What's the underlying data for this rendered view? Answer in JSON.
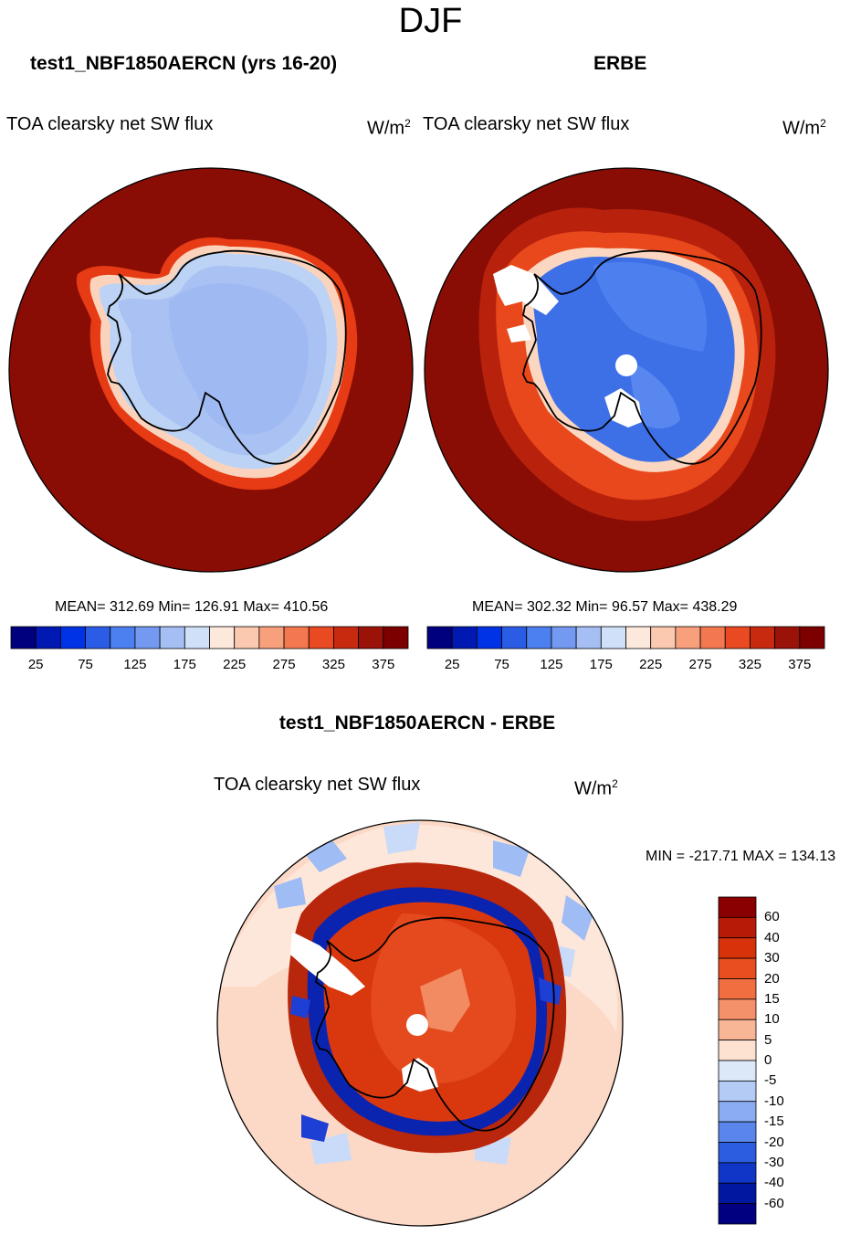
{
  "figure": {
    "season": "DJF",
    "panels": [
      {
        "title": "test1_NBF1850AERCN (yrs 16-20)",
        "variable": "TOA clearsky net SW flux",
        "units": "W/m",
        "units_sup": "2",
        "stats": "MEAN= 312.69  Min= 126.91  Max= 410.56"
      },
      {
        "title": "ERBE",
        "variable": "TOA clearsky net SW flux",
        "units": "W/m",
        "units_sup": "2",
        "stats": "MEAN= 302.32  Min=  96.57  Max= 438.29"
      },
      {
        "title": "test1_NBF1850AERCN - ERBE",
        "variable": "TOA clearsky net SW flux",
        "units": "W/m",
        "units_sup": "2",
        "minmax": "MIN = -217.71 MAX = 134.13"
      }
    ]
  },
  "chart_data": [
    {
      "type": "heatmap",
      "projection": "south-polar-stereographic",
      "title": "test1_NBF1850AERCN (yrs 16-20)",
      "variable": "TOA clearsky net SW flux",
      "units": "W/m2",
      "mean": 312.69,
      "min": 126.91,
      "max": 410.56,
      "colorbar_ticks": [
        "25",
        "75",
        "125",
        "175",
        "225",
        "275",
        "325",
        "375"
      ],
      "colorbar_levels": [
        25,
        50,
        75,
        100,
        125,
        150,
        175,
        200,
        225,
        250,
        275,
        300,
        325,
        350,
        375
      ],
      "colorbar_colors": [
        "#00007f",
        "#0019b3",
        "#0033e6",
        "#2a5ce6",
        "#4c7ff0",
        "#7399f0",
        "#a5bff5",
        "#cfe0f8",
        "#fde8dc",
        "#fbc8b0",
        "#f8a07c",
        "#f4784f",
        "#ea4a22",
        "#c82a10",
        "#9a1208",
        "#7d0000"
      ],
      "legend_position": "bottom"
    },
    {
      "type": "heatmap",
      "projection": "south-polar-stereographic",
      "title": "ERBE",
      "variable": "TOA clearsky net SW flux",
      "units": "W/m2",
      "mean": 302.32,
      "min": 96.57,
      "max": 438.29,
      "colorbar_ticks": [
        "25",
        "75",
        "125",
        "175",
        "225",
        "275",
        "325",
        "375"
      ],
      "colorbar_levels": [
        25,
        50,
        75,
        100,
        125,
        150,
        175,
        200,
        225,
        250,
        275,
        300,
        325,
        350,
        375
      ],
      "colorbar_colors": [
        "#00007f",
        "#0019b3",
        "#0033e6",
        "#2a5ce6",
        "#4c7ff0",
        "#7399f0",
        "#a5bff5",
        "#cfe0f8",
        "#fde8dc",
        "#fbc8b0",
        "#f8a07c",
        "#f4784f",
        "#ea4a22",
        "#c82a10",
        "#9a1208",
        "#7d0000"
      ],
      "legend_position": "bottom"
    },
    {
      "type": "heatmap",
      "projection": "south-polar-stereographic",
      "title": "test1_NBF1850AERCN - ERBE",
      "variable": "TOA clearsky net SW flux",
      "units": "W/m2",
      "min": -217.71,
      "max": 134.13,
      "colorbar_ticks": [
        "60",
        "40",
        "30",
        "20",
        "15",
        "10",
        "5",
        "0",
        "-5",
        "-10",
        "-15",
        "-20",
        "-30",
        "-40",
        "-60"
      ],
      "colorbar_colors": [
        "#8a0000",
        "#b81a08",
        "#d8320a",
        "#e84e20",
        "#f06e40",
        "#f5916a",
        "#f9b696",
        "#fde2d2",
        "#dce8f8",
        "#b4ccf5",
        "#8aacf0",
        "#5a85ea",
        "#2c5ce0",
        "#1036c8",
        "#0018a0",
        "#000080"
      ],
      "legend_position": "right"
    }
  ]
}
